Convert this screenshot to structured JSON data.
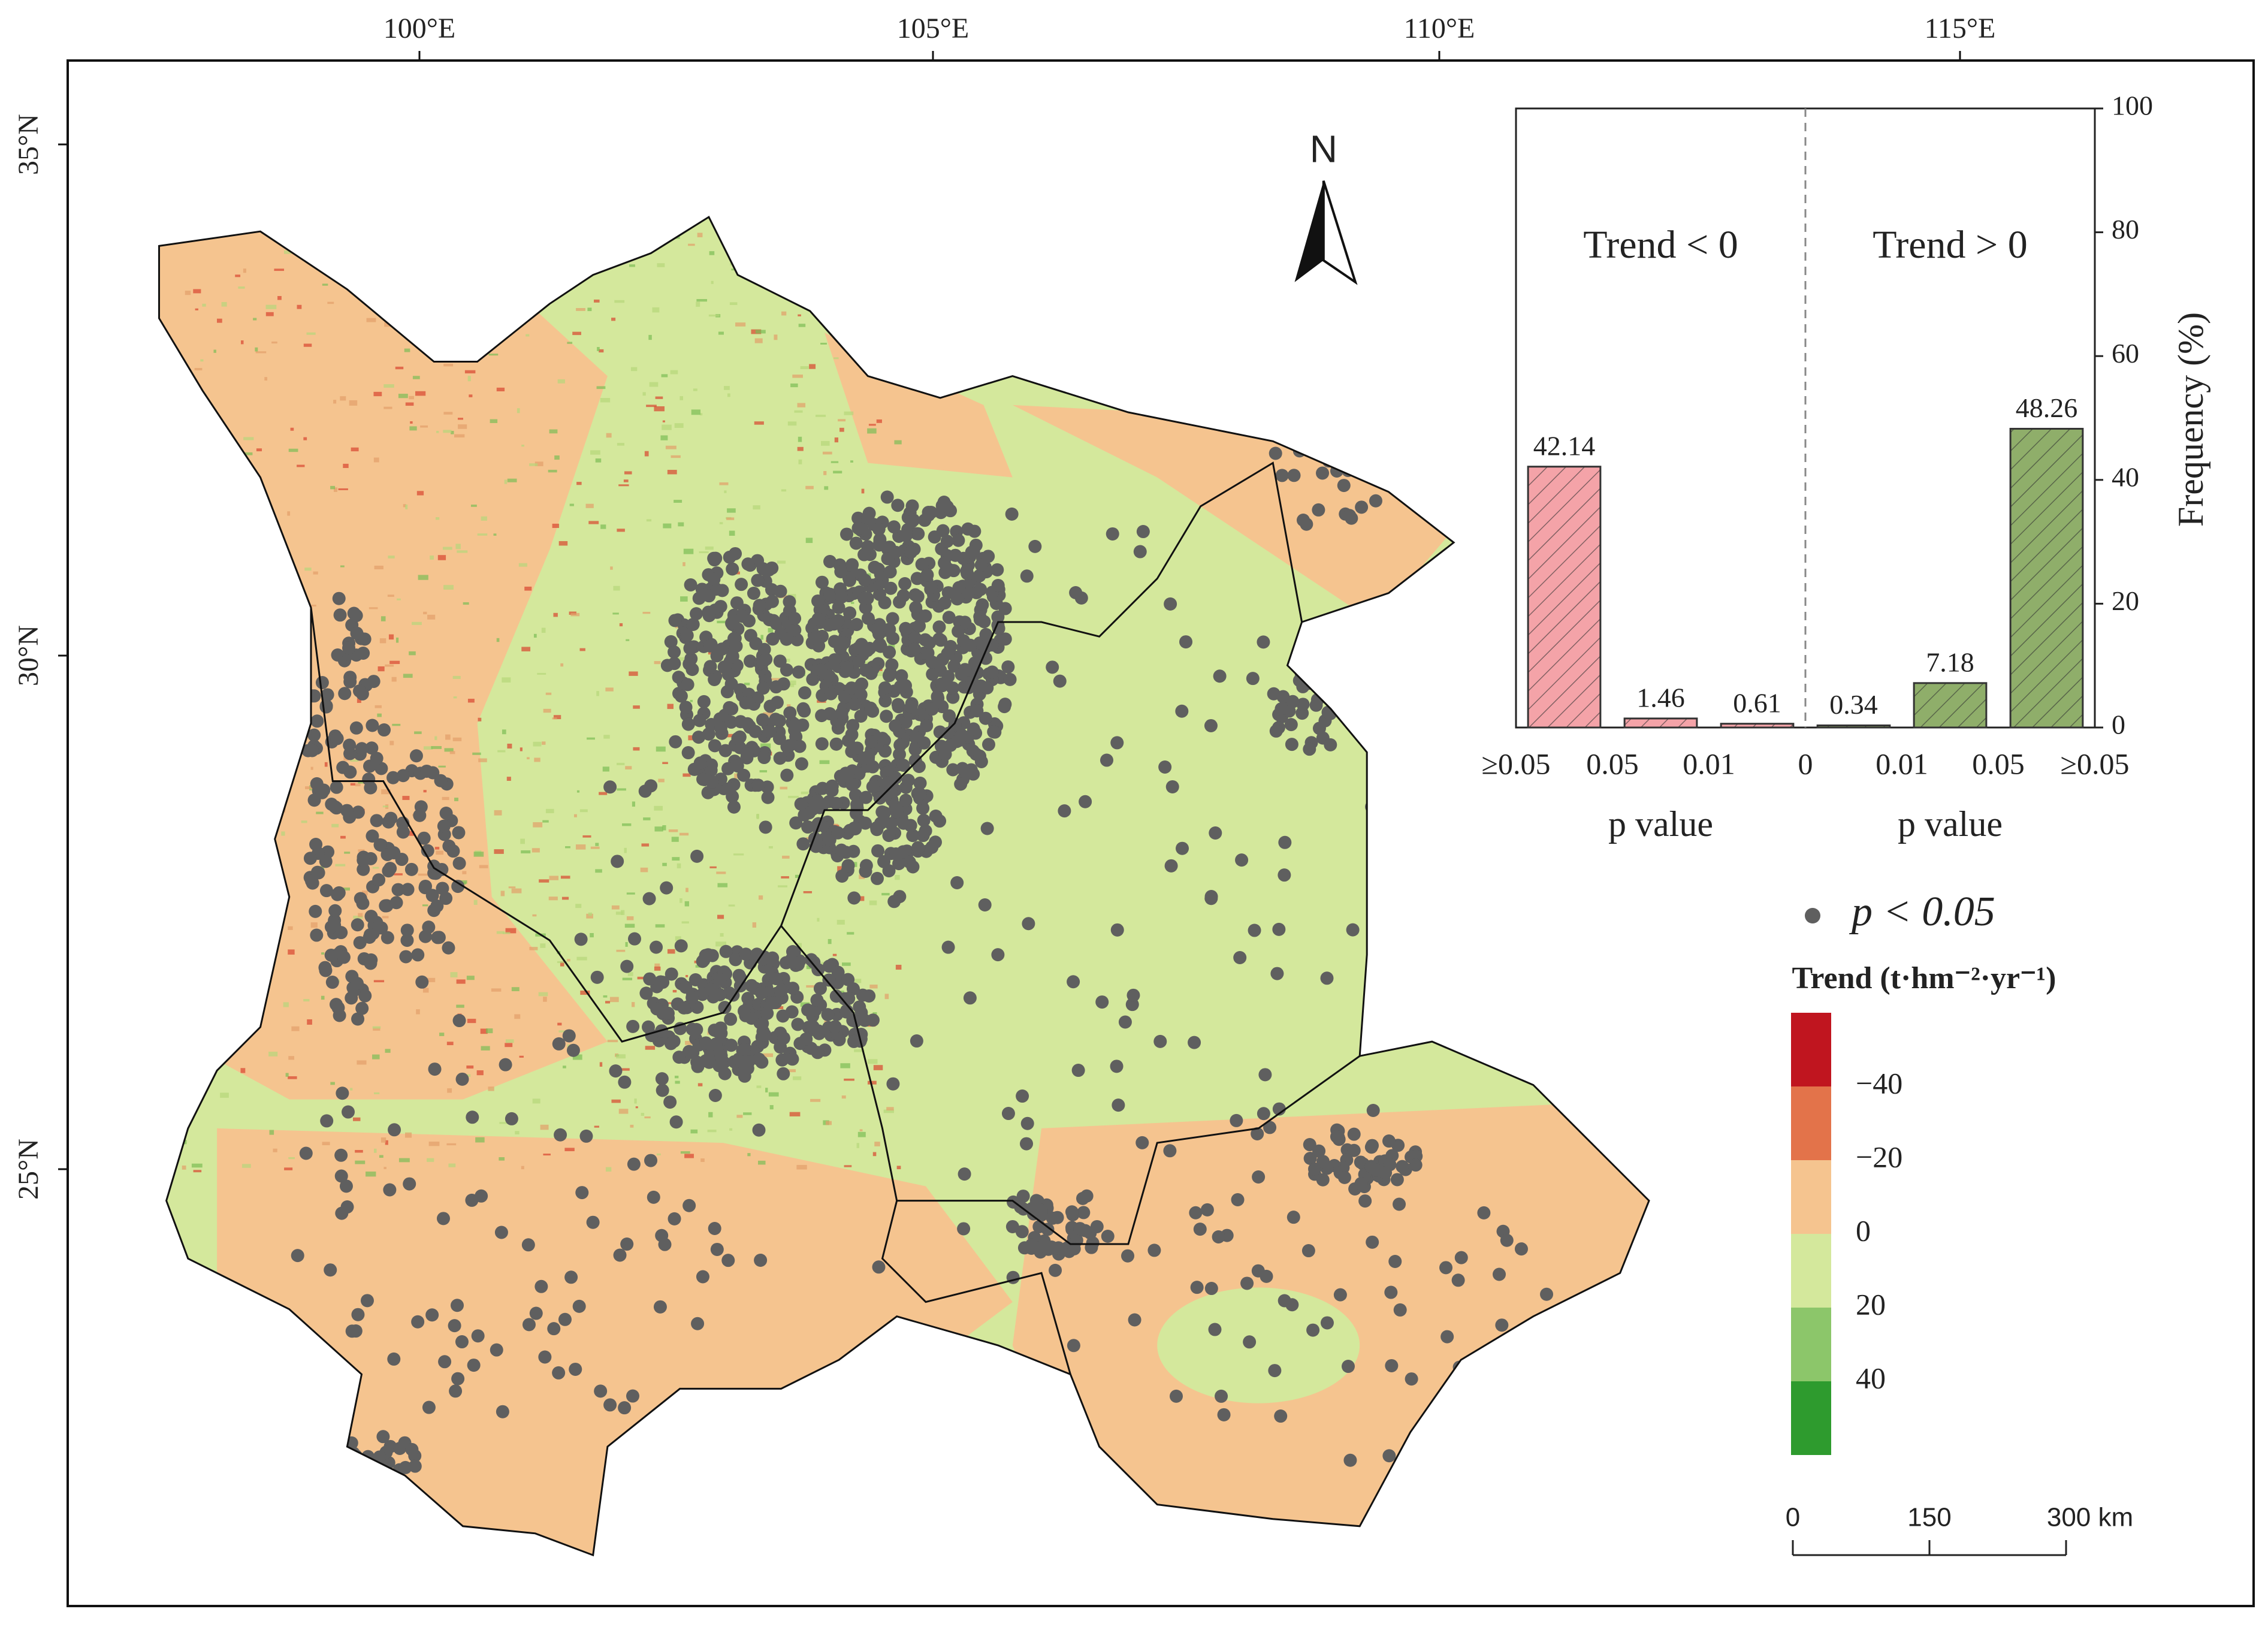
{
  "map": {
    "lon_labels": [
      "100°E",
      "105°E",
      "110°E",
      "115°E"
    ],
    "lat_labels": [
      "35°N",
      "30°N",
      "25°N"
    ],
    "north": "N",
    "legend": {
      "points": "p < 0.05",
      "title": "Trend (t·hm⁻²·yr⁻¹)",
      "colors": [
        "#c0151f",
        "#e3734a",
        "#f5c48f",
        "#d4e89c",
        "#8cc66a",
        "#2e9b2e"
      ],
      "labels": [
        "−40",
        "−20",
        "0",
        "20",
        "40"
      ]
    },
    "scale_bar": {
      "labels": [
        "0",
        "150",
        "300 km"
      ]
    }
  },
  "chart_data": {
    "type": "bar",
    "categories": [
      null,
      null,
      null,
      null,
      null,
      null
    ],
    "edge_labels": [
      "≥0.05",
      "0.05",
      "0.01",
      "0",
      "0.01",
      "0.05",
      "≥0.05"
    ],
    "values": [
      42.14,
      1.46,
      0.61,
      0.34,
      7.18,
      48.26
    ],
    "colors": [
      "#f4a3a8",
      "#f4a3a8",
      "#f4a3a8",
      "#8fae6a",
      "#8fae6a",
      "#8fae6a"
    ],
    "annotations": [
      "Trend < 0",
      "Trend > 0"
    ],
    "xlabels": [
      "p value",
      "p value"
    ],
    "ylabel": "Frequency (%)",
    "ylim": [
      0,
      100
    ],
    "yticks": [
      0,
      20,
      40,
      60,
      80,
      100
    ]
  }
}
